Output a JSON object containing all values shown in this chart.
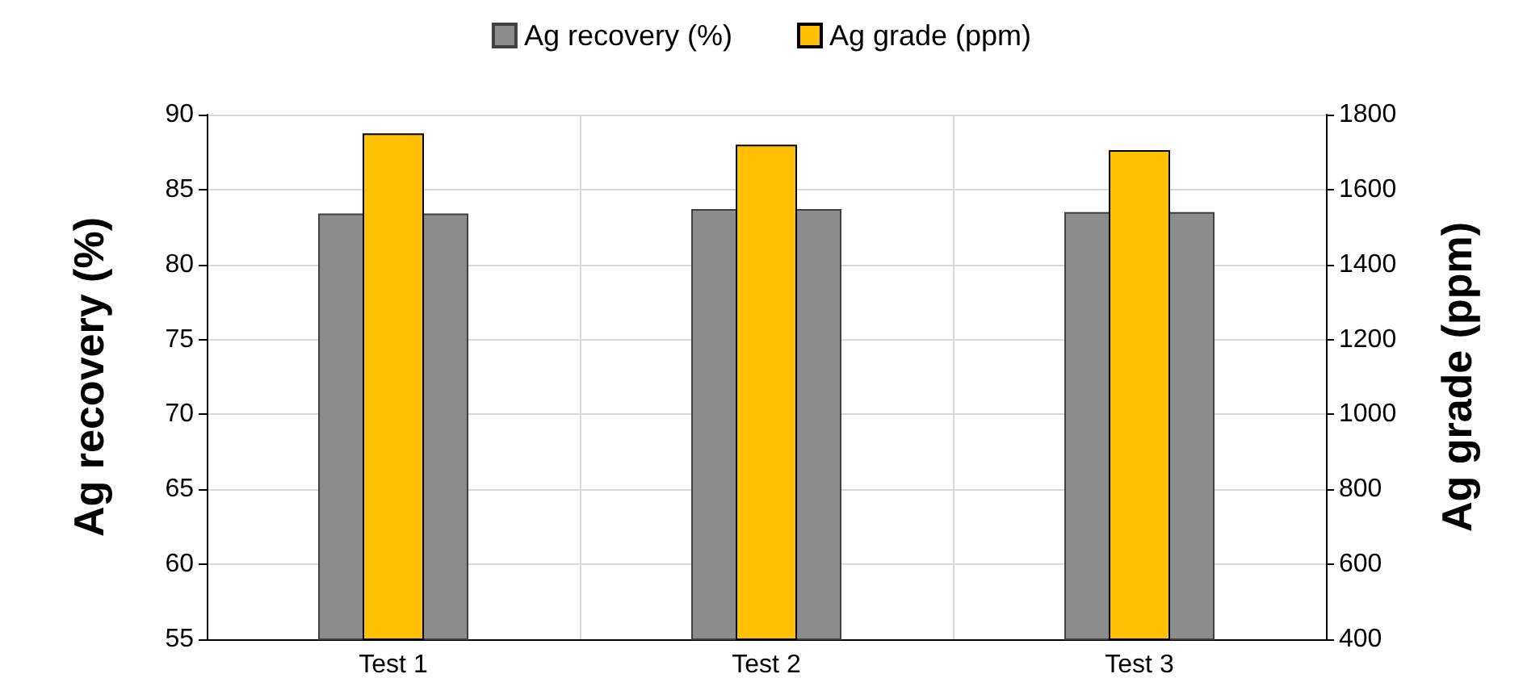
{
  "chart_data": {
    "type": "bar",
    "categories": [
      "Test 1",
      "Test 2",
      "Test 3"
    ],
    "series": [
      {
        "name": "Ag recovery (%)",
        "color": "#8c8c8c",
        "values": [
          83.4,
          83.7,
          83.5
        ]
      },
      {
        "name": "Ag grade (ppm)",
        "color": "#ffc000",
        "values": [
          1750,
          1720,
          1705
        ],
        "axis": "y2"
      }
    ],
    "ylabel": "Ag recovery (%)",
    "y2label": "Ag grade (ppm)",
    "ylim": [
      55,
      90
    ],
    "yticks": [
      55,
      60,
      65,
      70,
      75,
      80,
      85,
      90
    ],
    "y2lim": [
      400,
      1800
    ],
    "y2ticks": [
      400,
      600,
      800,
      1000,
      1200,
      1400,
      1600,
      1800
    ],
    "grid": true,
    "legend": "top"
  }
}
